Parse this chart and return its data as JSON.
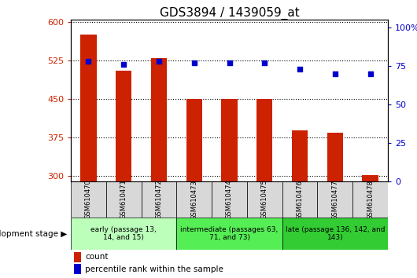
{
  "title": "GDS3894 / 1439059_at",
  "samples": [
    "GSM610470",
    "GSM610471",
    "GSM610472",
    "GSM610473",
    "GSM610474",
    "GSM610475",
    "GSM610476",
    "GSM610477",
    "GSM610478"
  ],
  "counts": [
    575,
    505,
    530,
    450,
    450,
    450,
    390,
    385,
    302
  ],
  "percentile_ranks": [
    78,
    76,
    78,
    77,
    77,
    77,
    73,
    70,
    70
  ],
  "ylim_left": [
    290,
    605
  ],
  "ylim_right": [
    0,
    105
  ],
  "yticks_left": [
    300,
    375,
    450,
    525,
    600
  ],
  "yticks_right": [
    0,
    25,
    50,
    75,
    100
  ],
  "bar_color": "#cc2200",
  "dot_color": "#0000cc",
  "bar_bottom": 290,
  "groups": [
    {
      "label": "early (passage 13,\n14, and 15)",
      "start": 0,
      "end": 3,
      "color": "#bbffbb"
    },
    {
      "label": "intermediate (passages 63,\n71, and 73)",
      "start": 3,
      "end": 6,
      "color": "#55ee55"
    },
    {
      "label": "late (passage 136, 142, and\n143)",
      "start": 6,
      "end": 9,
      "color": "#33cc33"
    }
  ],
  "xlabel_stage": "development stage",
  "legend_count": "count",
  "legend_pct": "percentile rank within the sample",
  "grid_color": "#000000",
  "tick_label_color_left": "#cc2200",
  "tick_label_color_right": "#0000cc",
  "title_fontsize": 11,
  "tick_fontsize": 8,
  "sample_label_fontsize": 6,
  "group_label_fontsize": 6.5
}
